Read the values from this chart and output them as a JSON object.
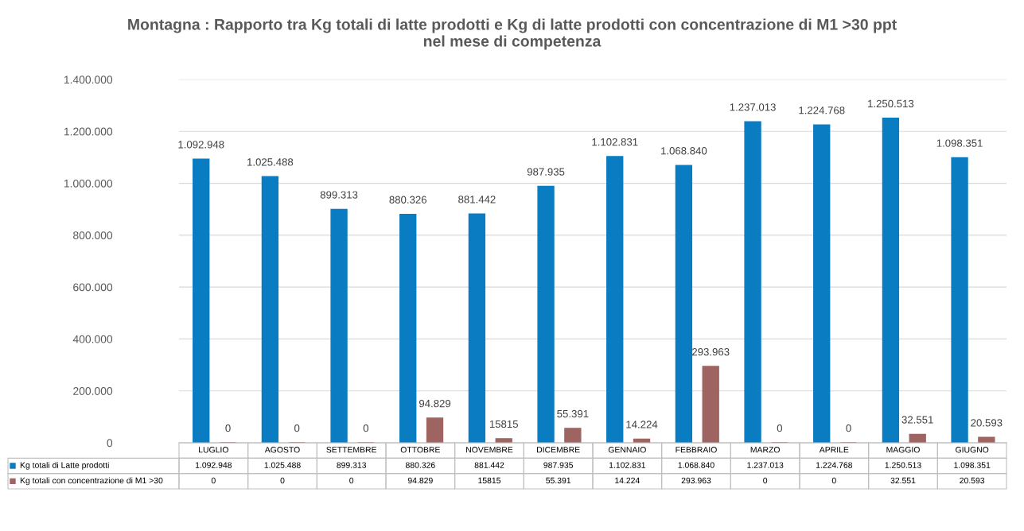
{
  "chart_data": {
    "type": "bar",
    "title": "Montagna : Rapporto tra Kg totali di latte prodotti e Kg di latte prodotti con concentrazione di M1 >30 ppt\nnel mese di competenza",
    "categories": [
      "LUGLIO",
      "AGOSTO",
      "SETTEMBRE",
      "OTTOBRE",
      "NOVEMBRE",
      "DICEMBRE",
      "GENNAIO",
      "FEBBRAIO",
      "MARZO",
      "APRILE",
      "MAGGIO",
      "GIUGNO"
    ],
    "series": [
      {
        "name": "Kg totali di Latte prodotti",
        "color": "#0a7cc1",
        "values": [
          1092948,
          1025488,
          899313,
          880326,
          881442,
          987935,
          1102831,
          1068840,
          1237013,
          1224768,
          1250513,
          1098351
        ],
        "value_labels": [
          "1.092.948",
          "1.025.488",
          "899.313",
          "880.326",
          "881.442",
          "987.935",
          "1.102.831",
          "1.068.840",
          "1.237.013",
          "1.224.768",
          "1.250.513",
          "1.098.351"
        ]
      },
      {
        "name": "Kg totali con concentrazione di M1 >30",
        "color": "#9e6461",
        "values": [
          0,
          0,
          0,
          94829,
          15815,
          55391,
          14224,
          293963,
          0,
          0,
          32551,
          20593
        ],
        "value_labels": [
          "0",
          "0",
          "0",
          "94.829",
          "15815",
          "55.391",
          "14.224",
          "293.963",
          "0",
          "0",
          "32.551",
          "20.593"
        ]
      }
    ],
    "ylim": [
      0,
      1400000
    ],
    "yticks": [
      {
        "value": 0,
        "label": "0"
      },
      {
        "value": 200000,
        "label": "200.000"
      },
      {
        "value": 400000,
        "label": "400.000"
      },
      {
        "value": 600000,
        "label": "600.000"
      },
      {
        "value": 800000,
        "label": "800.000"
      },
      {
        "value": 1000000,
        "label": "1.000.000"
      },
      {
        "value": 1200000,
        "label": "1.200.000"
      },
      {
        "value": 1400000,
        "label": "1.400.000"
      }
    ],
    "grid": "y",
    "legend": "bottom"
  }
}
